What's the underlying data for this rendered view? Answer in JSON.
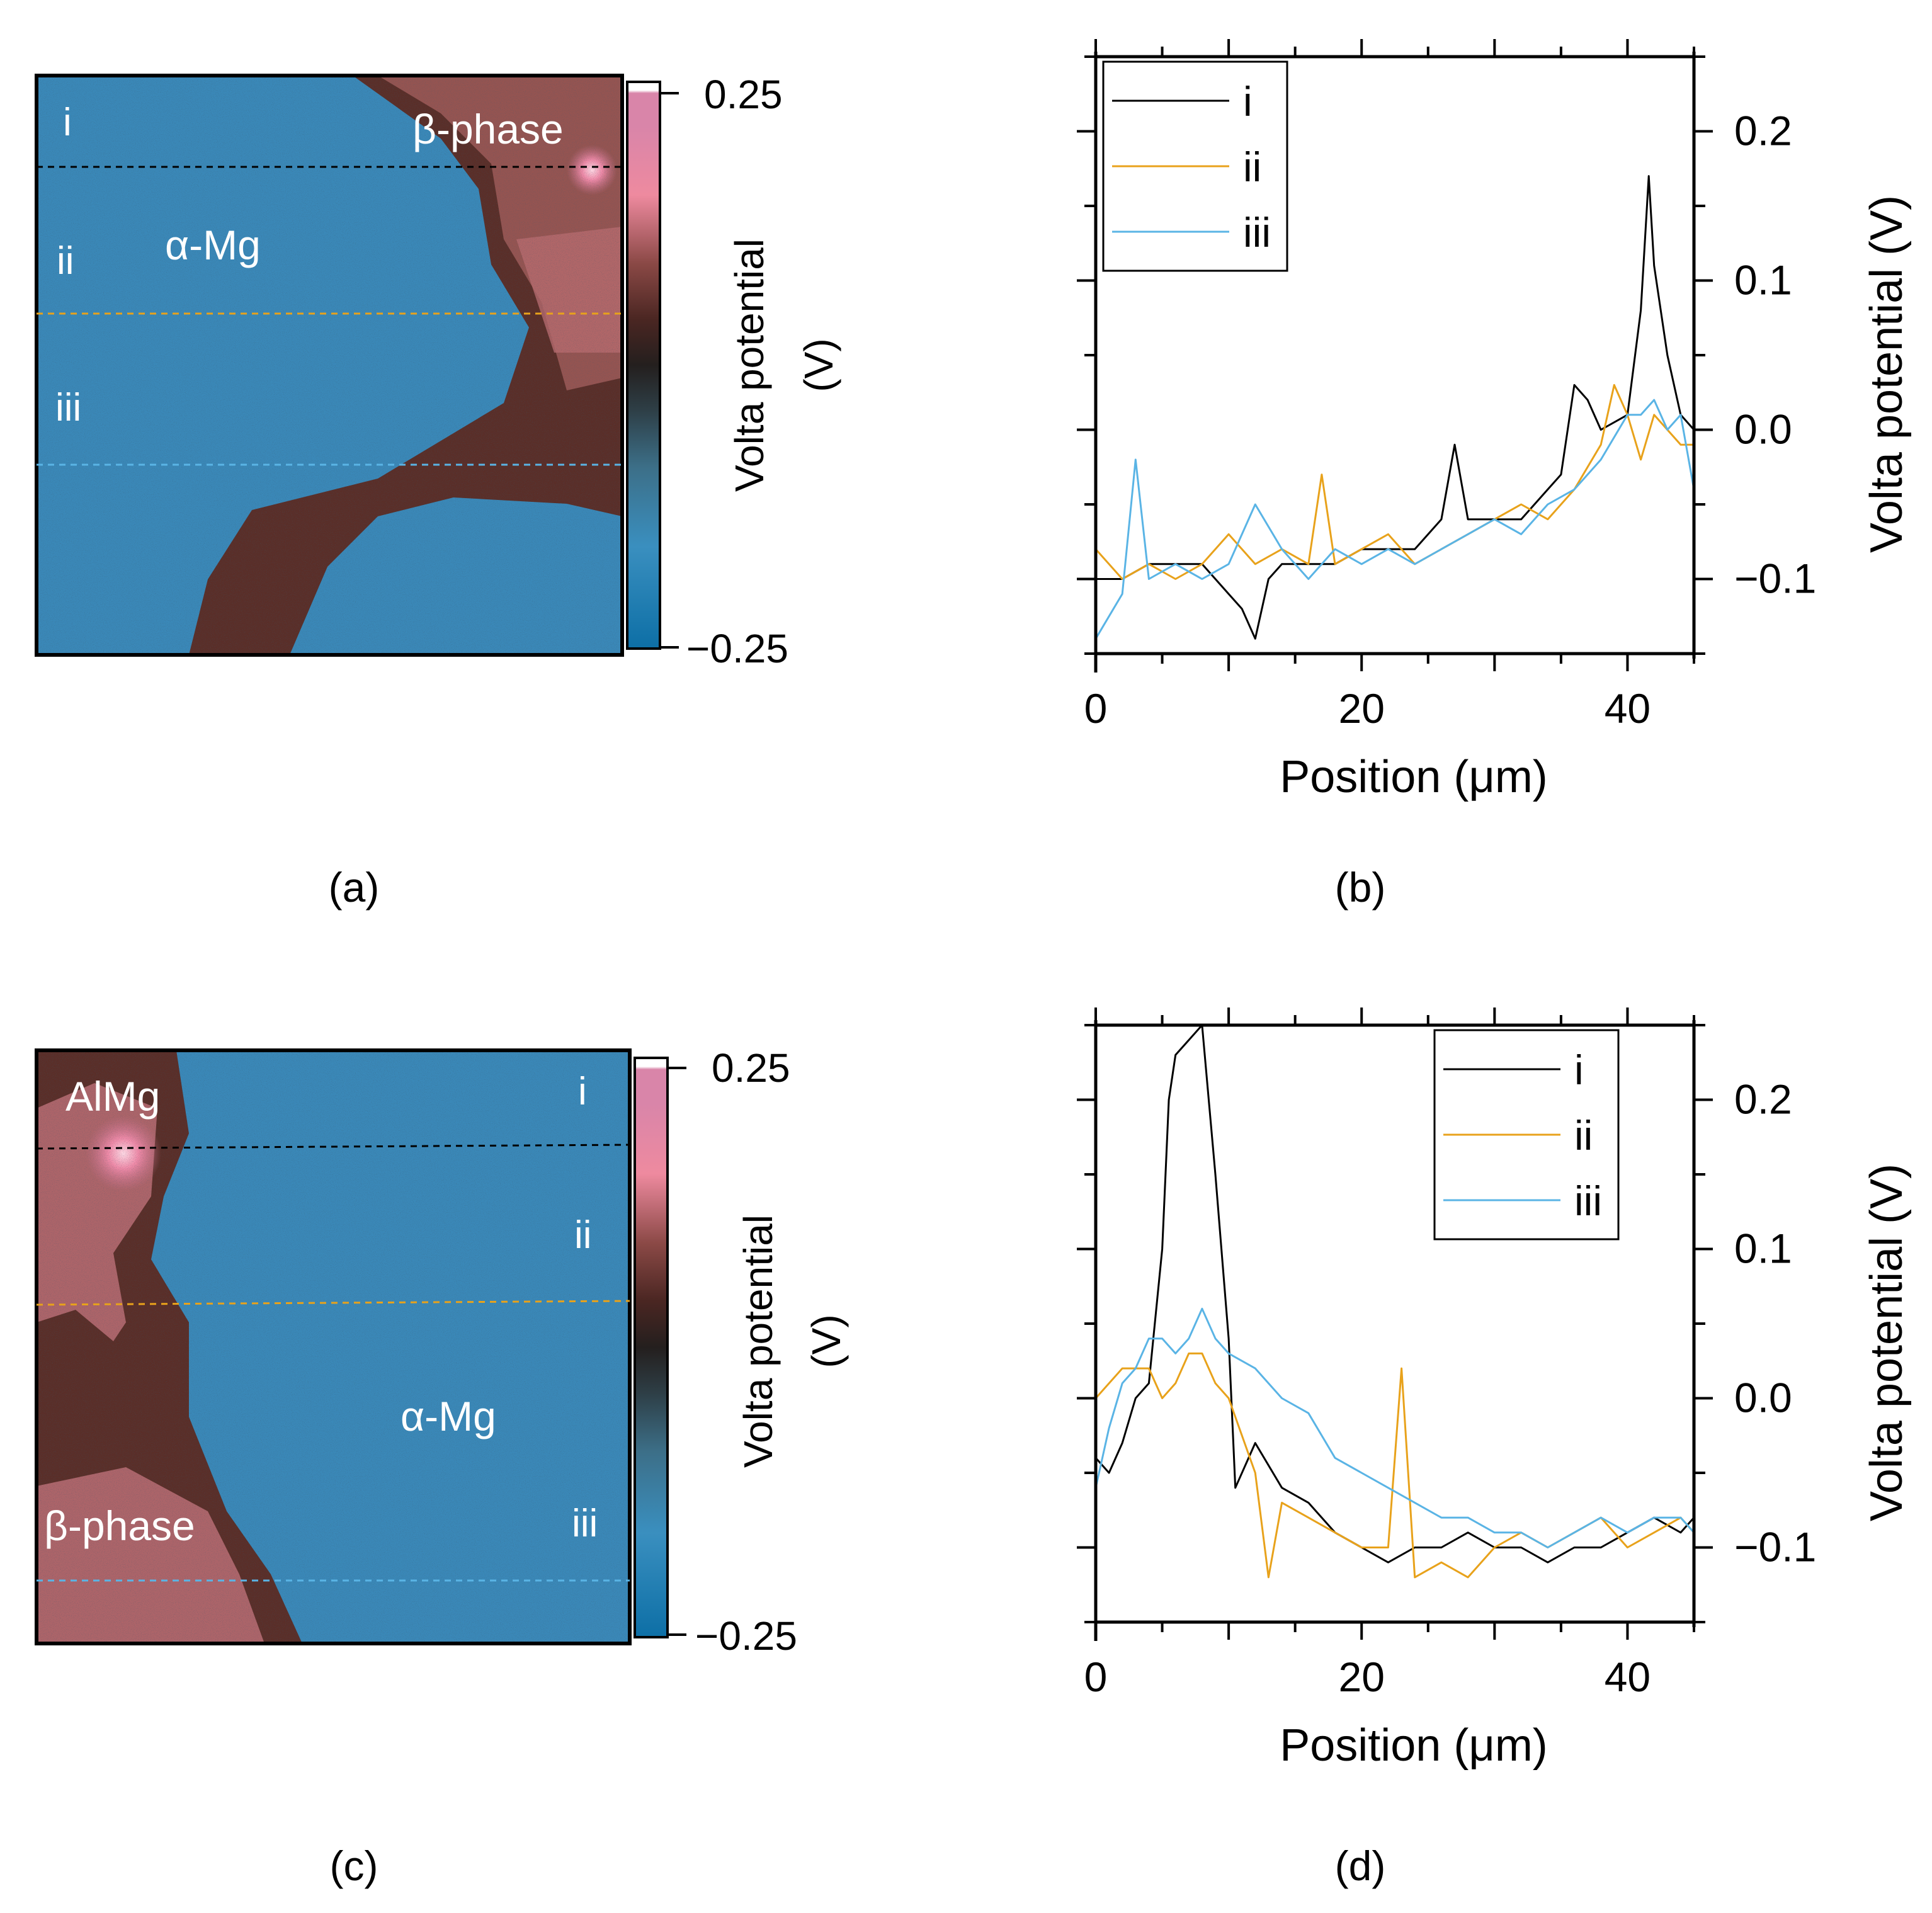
{
  "panel_a": {
    "caption": "(a)",
    "labels": {
      "i": "i",
      "ii": "ii",
      "iii": "iii",
      "alpha": "α-Mg",
      "beta": "β-phase"
    },
    "colorbar": {
      "max_label": "0.25",
      "min_label": "−0.25",
      "title_line1": "Volta potential",
      "title_line2": "(V)"
    }
  },
  "panel_c": {
    "caption": "(c)",
    "labels": {
      "i": "i",
      "ii": "ii",
      "iii": "iii",
      "alpha": "α-Mg",
      "beta": "β-phase",
      "almg": "AlMg"
    },
    "colorbar": {
      "max_label": "0.25",
      "min_label": "−0.25",
      "title_line1": "Volta potential",
      "title_line2": "(V)"
    }
  },
  "colors": {
    "i": "#000000",
    "ii": "#e8a21b",
    "iii": "#5ab4e5",
    "map_blue": "#3a88b8",
    "map_brown": "#5a2e28",
    "map_pink": "#d88fa4"
  },
  "chart_data": [
    {
      "id": "b",
      "type": "line",
      "caption": "(b)",
      "xlabel": "Position (μm)",
      "ylabel": "Volta potential (V)",
      "xlim": [
        0,
        45
      ],
      "ylim": [
        -0.15,
        0.25
      ],
      "xticks": [
        {
          "v": 0,
          "label": "0"
        },
        {
          "v": 20,
          "label": "20"
        },
        {
          "v": 40,
          "label": "40"
        }
      ],
      "yticks": [
        {
          "v": -0.1,
          "label": "−0.1"
        },
        {
          "v": 0.0,
          "label": "0.0"
        },
        {
          "v": 0.1,
          "label": "0.1"
        },
        {
          "v": 0.2,
          "label": "0.2"
        }
      ],
      "legend": "top-left",
      "series": [
        {
          "name": "i",
          "color": "#000000",
          "points": [
            [
              0,
              -0.1
            ],
            [
              2,
              -0.1
            ],
            [
              4,
              -0.09
            ],
            [
              6,
              -0.09
            ],
            [
              8,
              -0.09
            ],
            [
              10,
              -0.11
            ],
            [
              11,
              -0.12
            ],
            [
              12,
              -0.14
            ],
            [
              13,
              -0.1
            ],
            [
              14,
              -0.09
            ],
            [
              16,
              -0.09
            ],
            [
              18,
              -0.09
            ],
            [
              20,
              -0.08
            ],
            [
              22,
              -0.08
            ],
            [
              24,
              -0.08
            ],
            [
              26,
              -0.06
            ],
            [
              27,
              -0.01
            ],
            [
              28,
              -0.06
            ],
            [
              30,
              -0.06
            ],
            [
              32,
              -0.06
            ],
            [
              34,
              -0.04
            ],
            [
              35,
              -0.03
            ],
            [
              36,
              0.03
            ],
            [
              37,
              0.02
            ],
            [
              38,
              0.0
            ],
            [
              40,
              0.01
            ],
            [
              41,
              0.08
            ],
            [
              41.6,
              0.17
            ],
            [
              42,
              0.11
            ],
            [
              43,
              0.05
            ],
            [
              44,
              0.01
            ],
            [
              45,
              0.0
            ]
          ]
        },
        {
          "name": "ii",
          "color": "#e8a21b",
          "points": [
            [
              0,
              -0.08
            ],
            [
              2,
              -0.1
            ],
            [
              4,
              -0.09
            ],
            [
              6,
              -0.1
            ],
            [
              8,
              -0.09
            ],
            [
              10,
              -0.07
            ],
            [
              12,
              -0.09
            ],
            [
              14,
              -0.08
            ],
            [
              16,
              -0.09
            ],
            [
              17,
              -0.03
            ],
            [
              18,
              -0.09
            ],
            [
              20,
              -0.08
            ],
            [
              22,
              -0.07
            ],
            [
              24,
              -0.09
            ],
            [
              26,
              -0.08
            ],
            [
              28,
              -0.07
            ],
            [
              30,
              -0.06
            ],
            [
              32,
              -0.05
            ],
            [
              34,
              -0.06
            ],
            [
              36,
              -0.04
            ],
            [
              38,
              -0.01
            ],
            [
              39,
              0.03
            ],
            [
              40,
              0.01
            ],
            [
              41,
              -0.02
            ],
            [
              42,
              0.01
            ],
            [
              43,
              0.0
            ],
            [
              44,
              -0.01
            ],
            [
              45,
              -0.01
            ]
          ]
        },
        {
          "name": "iii",
          "color": "#5ab4e5",
          "points": [
            [
              0,
              -0.14
            ],
            [
              2,
              -0.11
            ],
            [
              3,
              -0.02
            ],
            [
              4,
              -0.1
            ],
            [
              6,
              -0.09
            ],
            [
              8,
              -0.1
            ],
            [
              10,
              -0.09
            ],
            [
              12,
              -0.05
            ],
            [
              14,
              -0.08
            ],
            [
              16,
              -0.1
            ],
            [
              18,
              -0.08
            ],
            [
              20,
              -0.09
            ],
            [
              22,
              -0.08
            ],
            [
              24,
              -0.09
            ],
            [
              26,
              -0.08
            ],
            [
              28,
              -0.07
            ],
            [
              30,
              -0.06
            ],
            [
              32,
              -0.07
            ],
            [
              34,
              -0.05
            ],
            [
              36,
              -0.04
            ],
            [
              38,
              -0.02
            ],
            [
              40,
              0.01
            ],
            [
              41,
              0.01
            ],
            [
              42,
              0.02
            ],
            [
              43,
              0.0
            ],
            [
              44,
              0.01
            ],
            [
              45,
              -0.04
            ]
          ]
        }
      ]
    },
    {
      "id": "d",
      "type": "line",
      "caption": "(d)",
      "xlabel": "Position (μm)",
      "ylabel": "Volta potential (V)",
      "xlim": [
        0,
        45
      ],
      "ylim": [
        -0.15,
        0.25
      ],
      "xticks": [
        {
          "v": 0,
          "label": "0"
        },
        {
          "v": 20,
          "label": "20"
        },
        {
          "v": 40,
          "label": "40"
        }
      ],
      "yticks": [
        {
          "v": -0.1,
          "label": "−0.1"
        },
        {
          "v": 0.0,
          "label": "0.0"
        },
        {
          "v": 0.1,
          "label": "0.1"
        },
        {
          "v": 0.2,
          "label": "0.2"
        }
      ],
      "legend": "top-right",
      "series": [
        {
          "name": "i",
          "color": "#000000",
          "points": [
            [
              0,
              -0.04
            ],
            [
              1,
              -0.05
            ],
            [
              2,
              -0.03
            ],
            [
              3,
              0.0
            ],
            [
              4,
              0.01
            ],
            [
              5,
              0.1
            ],
            [
              5.5,
              0.2
            ],
            [
              6,
              0.23
            ],
            [
              7,
              0.24
            ],
            [
              8,
              0.25
            ],
            [
              9,
              0.15
            ],
            [
              10,
              0.04
            ],
            [
              10.5,
              -0.06
            ],
            [
              12,
              -0.03
            ],
            [
              14,
              -0.06
            ],
            [
              16,
              -0.07
            ],
            [
              18,
              -0.09
            ],
            [
              20,
              -0.1
            ],
            [
              22,
              -0.11
            ],
            [
              24,
              -0.1
            ],
            [
              26,
              -0.1
            ],
            [
              28,
              -0.09
            ],
            [
              30,
              -0.1
            ],
            [
              32,
              -0.1
            ],
            [
              34,
              -0.11
            ],
            [
              36,
              -0.1
            ],
            [
              38,
              -0.1
            ],
            [
              40,
              -0.09
            ],
            [
              42,
              -0.08
            ],
            [
              44,
              -0.09
            ],
            [
              45,
              -0.08
            ]
          ]
        },
        {
          "name": "ii",
          "color": "#e8a21b",
          "points": [
            [
              0,
              0.0
            ],
            [
              2,
              0.02
            ],
            [
              4,
              0.02
            ],
            [
              5,
              0.0
            ],
            [
              6,
              0.01
            ],
            [
              7,
              0.03
            ],
            [
              8,
              0.03
            ],
            [
              9,
              0.01
            ],
            [
              10,
              0.0
            ],
            [
              12,
              -0.05
            ],
            [
              13,
              -0.12
            ],
            [
              14,
              -0.07
            ],
            [
              16,
              -0.08
            ],
            [
              18,
              -0.09
            ],
            [
              20,
              -0.1
            ],
            [
              22,
              -0.1
            ],
            [
              23,
              0.02
            ],
            [
              24,
              -0.12
            ],
            [
              26,
              -0.11
            ],
            [
              28,
              -0.12
            ],
            [
              30,
              -0.1
            ],
            [
              32,
              -0.09
            ],
            [
              34,
              -0.1
            ],
            [
              36,
              -0.09
            ],
            [
              38,
              -0.08
            ],
            [
              40,
              -0.1
            ],
            [
              42,
              -0.09
            ],
            [
              44,
              -0.08
            ],
            [
              45,
              -0.09
            ]
          ]
        },
        {
          "name": "iii",
          "color": "#5ab4e5",
          "points": [
            [
              0,
              -0.06
            ],
            [
              1,
              -0.02
            ],
            [
              2,
              0.01
            ],
            [
              3,
              0.02
            ],
            [
              4,
              0.04
            ],
            [
              5,
              0.04
            ],
            [
              6,
              0.03
            ],
            [
              7,
              0.04
            ],
            [
              8,
              0.06
            ],
            [
              9,
              0.04
            ],
            [
              10,
              0.03
            ],
            [
              12,
              0.02
            ],
            [
              14,
              0.0
            ],
            [
              16,
              -0.01
            ],
            [
              18,
              -0.04
            ],
            [
              20,
              -0.05
            ],
            [
              22,
              -0.06
            ],
            [
              24,
              -0.07
            ],
            [
              26,
              -0.08
            ],
            [
              28,
              -0.08
            ],
            [
              30,
              -0.09
            ],
            [
              32,
              -0.09
            ],
            [
              34,
              -0.1
            ],
            [
              36,
              -0.09
            ],
            [
              38,
              -0.08
            ],
            [
              40,
              -0.09
            ],
            [
              42,
              -0.08
            ],
            [
              44,
              -0.08
            ],
            [
              45,
              -0.09
            ]
          ]
        }
      ]
    }
  ]
}
